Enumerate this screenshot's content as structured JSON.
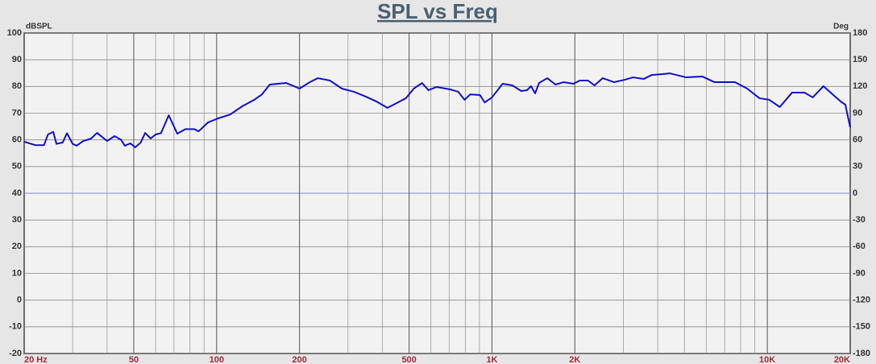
{
  "chart_data": {
    "type": "line",
    "title": "SPL vs Freq",
    "y_label": "dBSPL",
    "y2_label": "Deg",
    "xscale": "log",
    "xlim": [
      20,
      20000
    ],
    "ylim": [
      -20,
      100
    ],
    "y2lim": [
      -180,
      180
    ],
    "xticks": [
      {
        "value": 20,
        "label": "20 Hz"
      },
      50,
      100,
      200,
      500,
      {
        "value": 1000,
        "label": "1K"
      },
      {
        "value": 2000,
        "label": "2K"
      },
      {
        "value": 10000,
        "label": "10K"
      },
      {
        "value": 20000,
        "label": "20K"
      }
    ],
    "xgrid": [
      30,
      40,
      60,
      70,
      80,
      90,
      300,
      400,
      600,
      700,
      800,
      900,
      3000,
      4000,
      5000,
      6000,
      7000,
      8000,
      9000
    ],
    "yticks": [
      100,
      90,
      80,
      70,
      60,
      50,
      40,
      30,
      20,
      10,
      0,
      -10,
      -20
    ],
    "y2ticks": [
      180,
      150,
      120,
      90,
      60,
      30,
      0,
      -30,
      -60,
      -90,
      -120,
      -150,
      -180
    ],
    "grid": true,
    "zero_line_color": "#9a9ae8",
    "x": [
      20,
      22,
      23.6,
      24.4,
      25.5,
      26.2,
      27.6,
      28.6,
      30,
      31,
      32.7,
      35,
      36.8,
      40,
      42.6,
      45,
      46.4,
      48.6,
      50.6,
      53,
      55,
      57.6,
      60,
      62.8,
      67,
      72,
      77,
      83,
      86,
      93,
      101,
      112,
      124,
      137,
      146,
      156,
      179,
      200,
      218,
      233,
      258,
      285,
      315,
      348,
      380,
      417,
      440,
      487,
      520,
      557,
      588,
      629,
      705,
      754,
      795,
      834,
      904,
      941,
      1000,
      1093,
      1186,
      1277,
      1340,
      1386,
      1434,
      1483,
      1588,
      1700,
      1820,
      1975,
      2085,
      2233,
      2358,
      2525,
      2777,
      3034,
      3250,
      3554,
      3805,
      4130,
      4423,
      5070,
      5810,
      6435,
      7630,
      8450,
      9360,
      10160,
      11100,
      12300,
      13650,
      14620,
      15990,
      17370,
      18600,
      19200,
      20000
    ],
    "series": [
      {
        "name": "SPL",
        "color": "#1010c8",
        "values": [
          59.3,
          58,
          58,
          62,
          63,
          58.5,
          59,
          62.5,
          58.5,
          57.8,
          59.5,
          60.5,
          62.6,
          59.6,
          61.4,
          60,
          57.8,
          58.7,
          57.2,
          59,
          62.6,
          60.5,
          62,
          62.5,
          69.2,
          62.3,
          64,
          64,
          63.2,
          66.5,
          68,
          69.5,
          72.6,
          75,
          77,
          80.7,
          81.3,
          79.2,
          81.6,
          83.1,
          82.2,
          79.2,
          78,
          76.2,
          74.4,
          72,
          73.2,
          75.6,
          79.2,
          81.3,
          78.6,
          79.8,
          78.9,
          78,
          75,
          77,
          76.8,
          74,
          75.9,
          81,
          80.4,
          78.3,
          78.6,
          80.1,
          77.4,
          81.3,
          83.1,
          80.7,
          81.6,
          81,
          82.2,
          82.2,
          80.4,
          83.1,
          81.6,
          82.5,
          83.4,
          82.8,
          84.3,
          84.6,
          84.9,
          83.4,
          83.7,
          81.6,
          81.6,
          79.2,
          75.6,
          75,
          72.3,
          77.7,
          77.7,
          75.9,
          80.1,
          76.8,
          74.1,
          73.2,
          64.7
        ]
      }
    ]
  }
}
